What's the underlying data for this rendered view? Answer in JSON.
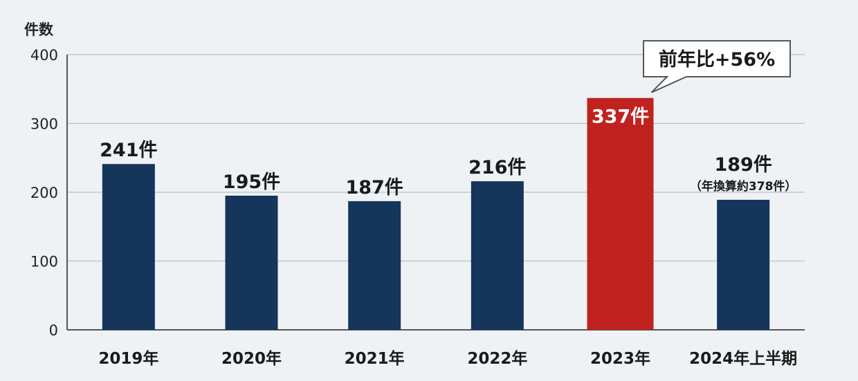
{
  "chart_data": {
    "type": "bar",
    "ylabel": "件数",
    "ylim": [
      0,
      400
    ],
    "yticks": [
      0,
      100,
      200,
      300,
      400
    ],
    "grid": true,
    "categories": [
      "2019年",
      "2020年",
      "2021年",
      "2022年",
      "2023年",
      "2024年上半期"
    ],
    "values": [
      241,
      195,
      187,
      216,
      337,
      189
    ],
    "data_labels": [
      "241件",
      "195件",
      "187件",
      "216件",
      "337件",
      "189件"
    ],
    "sub_labels": [
      "",
      "",
      "",
      "",
      "",
      "（年換算約378件）"
    ],
    "bar_colors": [
      "#15355b",
      "#15355b",
      "#15355b",
      "#15355b",
      "#c0231f",
      "#15355b"
    ],
    "highlight_index": 4,
    "annotation": "前年比+56%"
  }
}
